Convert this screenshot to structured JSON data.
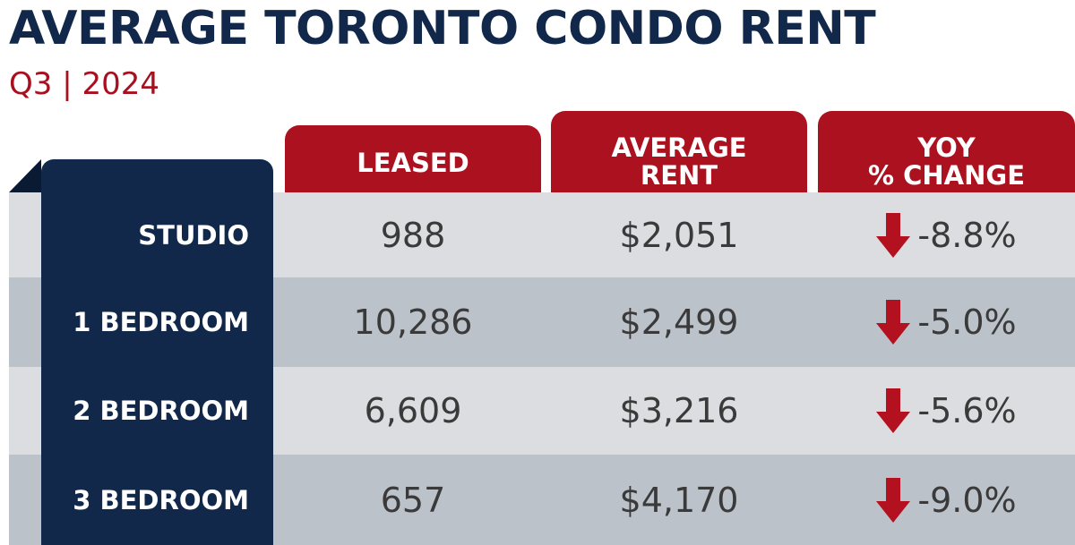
{
  "header": {
    "title": "AVERAGE TORONTO CONDO RENT",
    "subtitle": "Q3 | 2024"
  },
  "table": {
    "columns": [
      "LEASED",
      "AVERAGE\nRENT",
      "YOY\n% CHANGE"
    ],
    "rows": [
      [
        "STUDIO",
        "988",
        "$2,051",
        "-8.8%"
      ],
      [
        "1 BEDROOM",
        "10,286",
        "$2,499",
        "-5.0%"
      ],
      [
        "2 BEDROOM",
        "6,609",
        "$3,216",
        "-5.6%"
      ],
      [
        "3 BEDROOM",
        "657",
        "$4,170",
        "-9.0%"
      ]
    ]
  }
}
